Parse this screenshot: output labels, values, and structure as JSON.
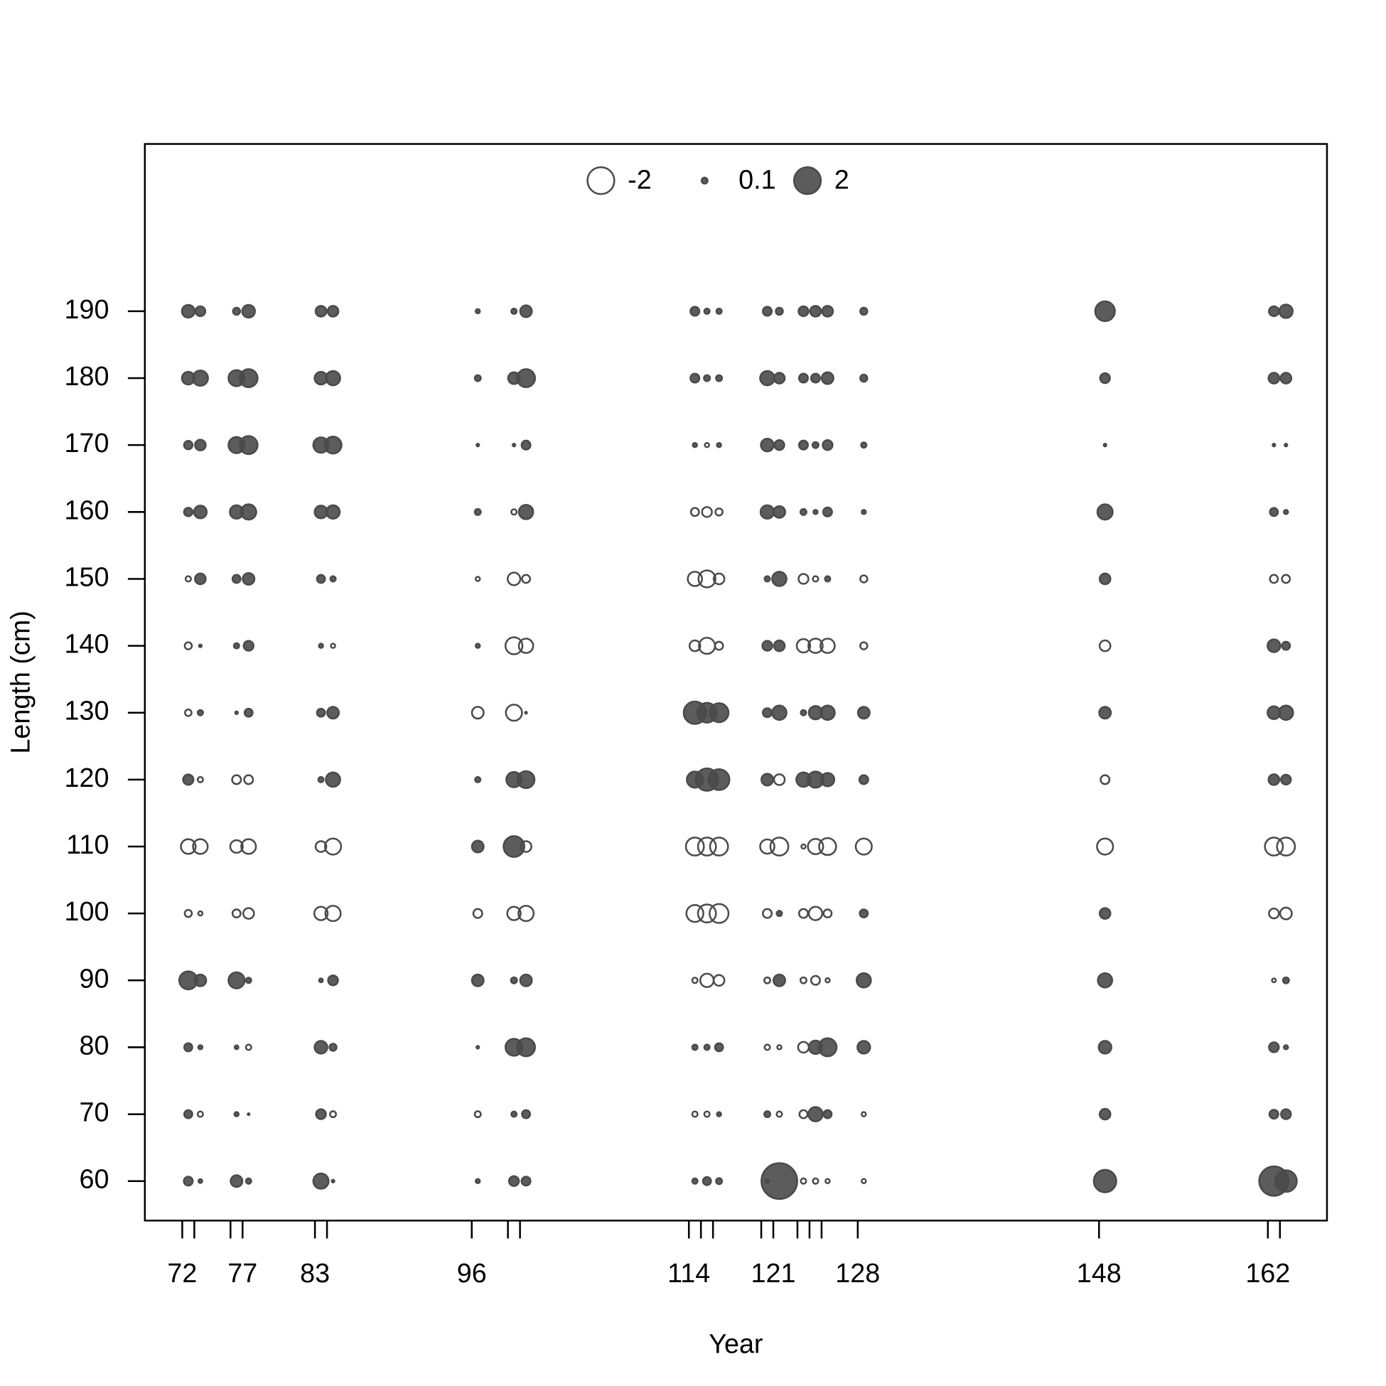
{
  "chart_data": {
    "type": "bubble",
    "x_label": "Year",
    "y_label": "Length (cm)",
    "color": "#4a4a4a",
    "xlim": [
      68.9,
      166.9
    ],
    "ylim": [
      54.1,
      215
    ],
    "xticks": [
      72,
      {
        "value": 73,
        "label": null
      },
      {
        "value": 76,
        "label": null
      },
      77,
      83,
      {
        "value": 84,
        "label": null
      },
      96,
      {
        "value": 99,
        "label": null
      },
      {
        "value": 100,
        "label": null
      },
      114,
      {
        "value": 115,
        "label": null
      },
      {
        "value": 116,
        "label": null
      },
      {
        "value": 120,
        "label": null
      },
      121,
      {
        "value": 123,
        "label": null
      },
      {
        "value": 124,
        "label": null
      },
      {
        "value": 125,
        "label": null
      },
      128,
      148,
      162,
      {
        "value": 163,
        "label": null
      }
    ],
    "yticks": [
      60,
      70,
      80,
      90,
      100,
      110,
      120,
      130,
      140,
      150,
      160,
      170,
      180,
      190
    ],
    "legend_values": [
      -2,
      0.1,
      2
    ],
    "y": [
      60,
      70,
      80,
      90,
      100,
      110,
      120,
      130,
      140,
      150,
      160,
      170,
      180,
      190
    ],
    "columns": [
      {
        "x": 72.5,
        "values": [
          0.22,
          0.18,
          0.18,
          0.9,
          -0.14,
          -0.6,
          0.3,
          -0.12,
          -0.14,
          -0.08,
          0.2,
          0.2,
          0.45,
          0.45
        ]
      },
      {
        "x": 73.5,
        "values": [
          0.04,
          -0.08,
          0.05,
          0.38,
          -0.05,
          -0.6,
          -0.08,
          0.08,
          0.02,
          0.32,
          0.45,
          0.32,
          0.65,
          0.27
        ]
      },
      {
        "x": 76.5,
        "values": [
          0.38,
          0.05,
          0.04,
          0.72,
          -0.18,
          -0.44,
          -0.22,
          0.02,
          0.08,
          0.18,
          0.5,
          0.72,
          0.72,
          0.14
        ]
      },
      {
        "x": 77.5,
        "values": [
          0.08,
          0.01,
          -0.08,
          0.08,
          -0.32,
          -0.6,
          -0.22,
          0.18,
          0.27,
          0.38,
          0.65,
          0.9,
          0.9,
          0.45
        ]
      },
      {
        "x": 83.5,
        "values": [
          0.65,
          0.27,
          0.45,
          0.04,
          -0.5,
          -0.32,
          0.08,
          0.18,
          0.05,
          0.18,
          0.45,
          0.65,
          0.45,
          0.32
        ]
      },
      {
        "x": 84.5,
        "values": [
          0.02,
          -0.1,
          0.14,
          0.27,
          -0.65,
          -0.72,
          0.57,
          0.38,
          -0.05,
          0.08,
          0.5,
          0.8,
          0.57,
          0.32
        ]
      },
      {
        "x": 96.5,
        "values": [
          0.05,
          -0.1,
          0.02,
          0.38,
          -0.22,
          0.38,
          0.08,
          -0.38,
          0.05,
          -0.05,
          0.1,
          0.02,
          0.1,
          0.05
        ]
      },
      {
        "x": 99.5,
        "values": [
          0.27,
          0.08,
          0.8,
          0.1,
          -0.5,
          1.2,
          0.65,
          -0.72,
          -0.8,
          -0.44,
          -0.08,
          0.02,
          0.38,
          0.08
        ]
      },
      {
        "x": 100.5,
        "values": [
          0.22,
          0.18,
          0.9,
          0.38,
          -0.65,
          -0.32,
          0.8,
          0.01,
          -0.57,
          -0.18,
          0.57,
          0.22,
          0.9,
          0.38
        ]
      },
      {
        "x": 114.5,
        "values": [
          0.08,
          -0.08,
          0.08,
          -0.08,
          -0.8,
          -0.9,
          0.72,
          1.4,
          -0.32,
          -0.57,
          -0.18,
          0.05,
          0.22,
          0.22
        ]
      },
      {
        "x": 115.5,
        "values": [
          0.18,
          -0.08,
          0.08,
          -0.5,
          -0.9,
          -0.9,
          1.4,
          1.08,
          -0.72,
          -0.8,
          -0.27,
          -0.05,
          0.1,
          0.08
        ]
      },
      {
        "x": 116.5,
        "values": [
          0.1,
          0.05,
          0.18,
          -0.32,
          -1.0,
          -0.9,
          1.2,
          1.0,
          -0.18,
          -0.32,
          -0.14,
          0.05,
          0.1,
          0.08
        ]
      },
      {
        "x": 120.5,
        "values": [
          0.04,
          0.1,
          -0.08,
          -0.1,
          -0.22,
          -0.57,
          0.38,
          0.22,
          0.27,
          0.08,
          0.5,
          0.45,
          0.57,
          0.22
        ]
      },
      {
        "x": 121.5,
        "values": [
          3.56,
          -0.08,
          -0.05,
          0.38,
          0.08,
          -0.9,
          -0.32,
          0.57,
          0.32,
          0.57,
          0.38,
          0.27,
          0.32,
          0.14
        ]
      },
      {
        "x": 123.5,
        "values": [
          -0.08,
          -0.18,
          -0.32,
          -0.1,
          -0.22,
          -0.05,
          0.57,
          0.08,
          -0.5,
          -0.27,
          0.1,
          0.22,
          0.22,
          0.27
        ]
      },
      {
        "x": 124.5,
        "values": [
          -0.08,
          0.57,
          0.5,
          -0.22,
          -0.5,
          -0.65,
          0.72,
          0.5,
          -0.57,
          -0.08,
          0.05,
          0.1,
          0.22,
          0.32
        ]
      },
      {
        "x": 125.5,
        "values": [
          -0.05,
          0.18,
          0.9,
          -0.05,
          -0.18,
          -0.8,
          0.5,
          0.57,
          -0.57,
          0.08,
          0.22,
          0.27,
          0.38,
          0.32
        ]
      },
      {
        "x": 128.5,
        "values": [
          -0.05,
          -0.05,
          0.45,
          0.57,
          0.18,
          -0.72,
          0.22,
          0.38,
          -0.14,
          -0.14,
          0.05,
          0.08,
          0.14,
          0.14
        ]
      },
      {
        "x": 148.5,
        "values": [
          1.4,
          0.32,
          0.45,
          0.57,
          0.32,
          -0.72,
          -0.22,
          0.38,
          -0.32,
          0.32,
          0.65,
          0.02,
          0.27,
          1.08
        ]
      },
      {
        "x": 162.5,
        "values": [
          2.4,
          0.22,
          0.27,
          -0.04,
          -0.27,
          -0.9,
          0.32,
          0.45,
          0.45,
          -0.18,
          0.18,
          0.02,
          0.32,
          0.27
        ]
      },
      {
        "x": 163.5,
        "values": [
          1.3,
          0.27,
          0.05,
          0.1,
          -0.38,
          -0.9,
          0.27,
          0.57,
          0.18,
          -0.18,
          0.05,
          0.02,
          0.32,
          0.5
        ]
      }
    ]
  }
}
